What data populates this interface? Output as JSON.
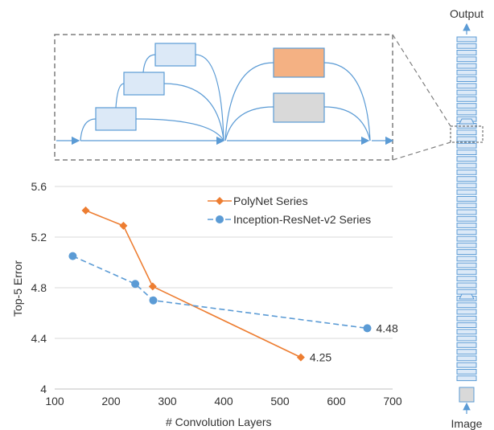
{
  "colors": {
    "block_blue_fill": "#dce9f7",
    "block_blue_stroke": "#5b9bd5",
    "block_orange_fill": "#f4b183",
    "block_gray_fill": "#d9d9d9",
    "arrow_blue": "#5b9bd5",
    "dashed_gray": "#7f7f7f",
    "polynet_orange": "#ed7d31",
    "inception_blue": "#5b9bd5",
    "grid": "#d9d9d9",
    "text": "#333333"
  },
  "network": {
    "top_label": "Output",
    "bottom_label": "Image"
  },
  "chart_data": {
    "type": "line",
    "xlabel": "# Convolution Layers",
    "ylabel": "Top-5 Error",
    "xlim": [
      100,
      700
    ],
    "ylim": [
      4,
      5.6
    ],
    "x_ticks": [
      "100",
      "200",
      "300",
      "400",
      "500",
      "600",
      "700"
    ],
    "y_ticks": [
      "4",
      "4.4",
      "4.8",
      "5.2",
      "5.6"
    ],
    "grid": "horizontal",
    "legend_position": "top-right",
    "series": [
      {
        "name": "PolyNet Series",
        "marker": "diamond",
        "line": "solid",
        "color": "#ed7d31",
        "points": [
          [
            155,
            5.41
          ],
          [
            222,
            5.29
          ],
          [
            274,
            4.81
          ],
          [
            537,
            4.25
          ]
        ],
        "end_label": "4.25"
      },
      {
        "name": "Inception-ResNet-v2 Series",
        "marker": "circle",
        "line": "dashed",
        "color": "#5b9bd5",
        "points": [
          [
            132,
            5.05
          ],
          [
            243,
            4.83
          ],
          [
            275,
            4.7
          ],
          [
            655,
            4.48
          ]
        ],
        "end_label": "4.48"
      }
    ]
  }
}
